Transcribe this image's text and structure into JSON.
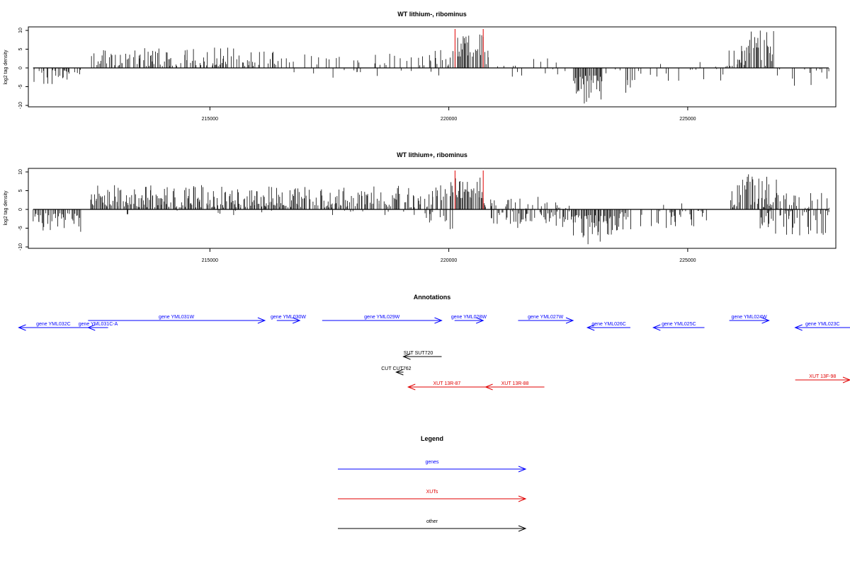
{
  "chart_data": [
    {
      "type": "bar",
      "title": "WT lithium-, ribominus",
      "ylabel": "log2 tag density",
      "xlabel": "",
      "xlim": [
        211200,
        228100
      ],
      "ylim": [
        -10,
        10
      ],
      "x_ticks": [
        215000,
        220000,
        225000
      ],
      "x_tick_labels": [
        "215000",
        "220000",
        "225000"
      ],
      "y_ticks": [
        10,
        5,
        0,
        -5,
        -10
      ],
      "y_tick_labels": [
        "10",
        "5",
        "0",
        "-5",
        "-10"
      ],
      "highlight_markers": {
        "color": "#e00000",
        "x": [
          220130,
          220720
        ]
      },
      "bar_color": "#000000",
      "regions": [
        {
          "x_start": 211300,
          "x_end": 212300,
          "sign": -1,
          "min": 0.5,
          "max": 4.8,
          "density": 0.45
        },
        {
          "x_start": 212500,
          "x_end": 215900,
          "sign": 1,
          "min": 0.5,
          "max": 5.5,
          "density": 0.6
        },
        {
          "x_start": 215900,
          "x_end": 216500,
          "sign": 1,
          "min": 0.5,
          "max": 4.5,
          "density": 0.4
        },
        {
          "x_start": 216500,
          "x_end": 219700,
          "sign": 1,
          "min": 0.5,
          "max": 4.0,
          "density": 0.18
        },
        {
          "x_start": 216500,
          "x_end": 219800,
          "sign": -1,
          "min": 0.3,
          "max": 3.0,
          "density": 0.07
        },
        {
          "x_start": 219700,
          "x_end": 220100,
          "sign": 1,
          "min": 0.5,
          "max": 6.5,
          "density": 0.55
        },
        {
          "x_start": 220130,
          "x_end": 220720,
          "sign": 1,
          "min": 3.0,
          "max": 9.0,
          "density": 0.9
        },
        {
          "x_start": 220720,
          "x_end": 220850,
          "sign": 1,
          "min": 1.0,
          "max": 5.0,
          "density": 0.6
        },
        {
          "x_start": 220850,
          "x_end": 222600,
          "sign": 1,
          "min": 0.3,
          "max": 3.0,
          "density": 0.1
        },
        {
          "x_start": 220850,
          "x_end": 222600,
          "sign": -1,
          "min": 0.3,
          "max": 2.5,
          "density": 0.06
        },
        {
          "x_start": 222600,
          "x_end": 223220,
          "sign": -1,
          "min": 2.0,
          "max": 9.5,
          "density": 0.95
        },
        {
          "x_start": 223220,
          "x_end": 223700,
          "sign": -1,
          "min": 0.3,
          "max": 3.0,
          "density": 0.15
        },
        {
          "x_start": 223700,
          "x_end": 223900,
          "sign": -1,
          "min": 3.0,
          "max": 8.0,
          "density": 0.85
        },
        {
          "x_start": 223900,
          "x_end": 225800,
          "sign": -1,
          "min": 0.3,
          "max": 3.5,
          "density": 0.12
        },
        {
          "x_start": 223900,
          "x_end": 225800,
          "sign": 1,
          "min": 0.3,
          "max": 2.5,
          "density": 0.06
        },
        {
          "x_start": 225800,
          "x_end": 226100,
          "sign": 1,
          "min": 0.5,
          "max": 6.0,
          "density": 0.6
        },
        {
          "x_start": 226100,
          "x_end": 226800,
          "sign": 1,
          "min": 0.5,
          "max": 10.0,
          "density": 0.75
        },
        {
          "x_start": 226800,
          "x_end": 227950,
          "sign": -1,
          "min": 0.3,
          "max": 5.0,
          "density": 0.3
        }
      ]
    },
    {
      "type": "bar",
      "title": "WT lithium+, ribominus",
      "ylabel": "log2 tag density",
      "xlabel": "",
      "xlim": [
        211200,
        228100
      ],
      "ylim": [
        -10,
        10
      ],
      "x_ticks": [
        215000,
        220000,
        225000
      ],
      "x_tick_labels": [
        "215000",
        "220000",
        "225000"
      ],
      "y_ticks": [
        10,
        5,
        0,
        -5,
        -10
      ],
      "y_tick_labels": [
        "10",
        "5",
        "0",
        "-5",
        "-10"
      ],
      "highlight_markers": {
        "color": "#e00000",
        "x": [
          220130,
          220720
        ]
      },
      "bar_color": "#000000",
      "regions": [
        {
          "x_start": 211300,
          "x_end": 212300,
          "sign": -1,
          "min": 1.0,
          "max": 6.0,
          "density": 0.8
        },
        {
          "x_start": 212500,
          "x_end": 216800,
          "sign": 1,
          "min": 0.5,
          "max": 6.5,
          "density": 0.85
        },
        {
          "x_start": 212500,
          "x_end": 216800,
          "sign": -1,
          "min": 0.3,
          "max": 1.5,
          "density": 0.05
        },
        {
          "x_start": 216800,
          "x_end": 219700,
          "sign": 1,
          "min": 0.5,
          "max": 6.5,
          "density": 0.7
        },
        {
          "x_start": 217500,
          "x_end": 219800,
          "sign": -1,
          "min": 0.3,
          "max": 2.0,
          "density": 0.08
        },
        {
          "x_start": 219500,
          "x_end": 220100,
          "sign": -1,
          "min": 0.5,
          "max": 6.5,
          "density": 0.35
        },
        {
          "x_start": 219700,
          "x_end": 220100,
          "sign": 1,
          "min": 0.5,
          "max": 8.0,
          "density": 0.6
        },
        {
          "x_start": 220130,
          "x_end": 220720,
          "sign": 1,
          "min": 3.0,
          "max": 9.0,
          "density": 0.95
        },
        {
          "x_start": 220720,
          "x_end": 221000,
          "sign": 1,
          "min": 0.5,
          "max": 3.0,
          "density": 0.45
        },
        {
          "x_start": 220850,
          "x_end": 222600,
          "sign": -1,
          "min": 0.5,
          "max": 5.0,
          "density": 0.65
        },
        {
          "x_start": 221000,
          "x_end": 222600,
          "sign": 1,
          "min": 0.3,
          "max": 3.5,
          "density": 0.25
        },
        {
          "x_start": 222600,
          "x_end": 223500,
          "sign": -1,
          "min": 1.5,
          "max": 9.5,
          "density": 0.95
        },
        {
          "x_start": 223500,
          "x_end": 223900,
          "sign": -1,
          "min": 0.5,
          "max": 8.0,
          "density": 0.5
        },
        {
          "x_start": 223900,
          "x_end": 225400,
          "sign": -1,
          "min": 0.3,
          "max": 5.0,
          "density": 0.3
        },
        {
          "x_start": 224000,
          "x_end": 225200,
          "sign": 1,
          "min": 0.3,
          "max": 2.0,
          "density": 0.05
        },
        {
          "x_start": 225900,
          "x_end": 226900,
          "sign": 1,
          "min": 0.5,
          "max": 9.5,
          "density": 0.85
        },
        {
          "x_start": 226500,
          "x_end": 227950,
          "sign": 1,
          "min": 0.3,
          "max": 4.5,
          "density": 0.35
        },
        {
          "x_start": 226500,
          "x_end": 227950,
          "sign": -1,
          "min": 0.3,
          "max": 7.0,
          "density": 0.6
        }
      ]
    }
  ],
  "annotations": {
    "title": "Annotations",
    "features": [
      {
        "label": "gene YML032C",
        "type": "gene",
        "strand": "-",
        "start": 211000,
        "end": 212450,
        "row": 1
      },
      {
        "label": "gene YML031C-A",
        "type": "gene",
        "strand": "-",
        "start": 212450,
        "end": 212870,
        "row": 1
      },
      {
        "label": "gene YML031W",
        "type": "gene",
        "strand": "+",
        "start": 212450,
        "end": 216150,
        "row": 0
      },
      {
        "label": "gene YML030W",
        "type": "gene",
        "strand": "+",
        "start": 216400,
        "end": 216880,
        "row": 0
      },
      {
        "label": "gene YML029W",
        "type": "gene",
        "strand": "+",
        "start": 217350,
        "end": 219850,
        "row": 0
      },
      {
        "label": "gene YML028W",
        "type": "gene",
        "strand": "+",
        "start": 220120,
        "end": 220720,
        "row": 0
      },
      {
        "label": "gene YML027W",
        "type": "gene",
        "strand": "+",
        "start": 221450,
        "end": 222600,
        "row": 0
      },
      {
        "label": "gene YML026C",
        "type": "gene",
        "strand": "-",
        "start": 222900,
        "end": 223800,
        "row": 1
      },
      {
        "label": "gene YML025C",
        "type": "gene",
        "strand": "-",
        "start": 224280,
        "end": 225350,
        "row": 1
      },
      {
        "label": "gene YML024W",
        "type": "gene",
        "strand": "+",
        "start": 225870,
        "end": 226700,
        "row": 0
      },
      {
        "label": "gene YML023C",
        "type": "gene",
        "strand": "-",
        "start": 227250,
        "end": 228850,
        "row": 1
      },
      {
        "label": "SUT SUT720",
        "type": "other",
        "strand": "-",
        "start": 219050,
        "end": 219850,
        "row": 3
      },
      {
        "label": "CUT CUT762",
        "type": "other",
        "strand": "-",
        "start": 218900,
        "end": 219050,
        "row": 4
      },
      {
        "label": "XUT 13R-87",
        "type": "xut",
        "strand": "-",
        "start": 219150,
        "end": 220770,
        "row": 5
      },
      {
        "label": "XUT 13R-88",
        "type": "xut",
        "strand": "-",
        "start": 220770,
        "end": 222000,
        "row": 5
      },
      {
        "label": "XUT 13F-98",
        "type": "xut",
        "strand": "+",
        "start": 227250,
        "end": 228800,
        "row": 6
      }
    ]
  },
  "legend": {
    "title": "Legend",
    "items": [
      {
        "label": "genes",
        "color": "#0000ff"
      },
      {
        "label": "XUTs",
        "color": "#e00000"
      },
      {
        "label": "other",
        "color": "#000000"
      }
    ]
  },
  "colors": {
    "gene": "#0000ff",
    "xut": "#e00000",
    "other": "#000000"
  }
}
